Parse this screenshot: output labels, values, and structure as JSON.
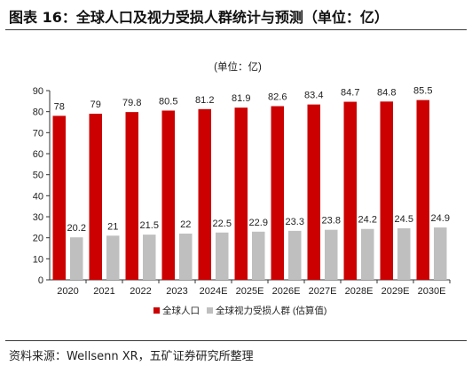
{
  "header": {
    "title": "图表 16：全球人口及视力受损人群统计与预测（单位：亿）"
  },
  "footer": {
    "source": "资料来源：Wellsenn XR，五矿证券研究所整理"
  },
  "chart_data": {
    "type": "bar",
    "title": "(单位：亿)",
    "categories": [
      "2020",
      "2021",
      "2022",
      "2023",
      "2024E",
      "2025E",
      "2026E",
      "2027E",
      "2028E",
      "2029E",
      "2030E"
    ],
    "series": [
      {
        "name": "全球人口",
        "color": "#cc0000",
        "values": [
          78,
          79,
          79.8,
          80.5,
          81.2,
          81.9,
          82.6,
          83.4,
          84.7,
          84.8,
          85.5
        ]
      },
      {
        "name": "全球视力受损人群 (估算值)",
        "color": "#bfbfbf",
        "values": [
          20.2,
          21,
          21.5,
          22,
          22.5,
          22.9,
          23.3,
          23.8,
          24.2,
          24.5,
          24.9
        ]
      }
    ],
    "ylim": [
      0,
      90
    ],
    "yticks": [
      0,
      10,
      20,
      30,
      40,
      50,
      60,
      70,
      80,
      90
    ],
    "legend_position": "bottom",
    "grid": false
  }
}
